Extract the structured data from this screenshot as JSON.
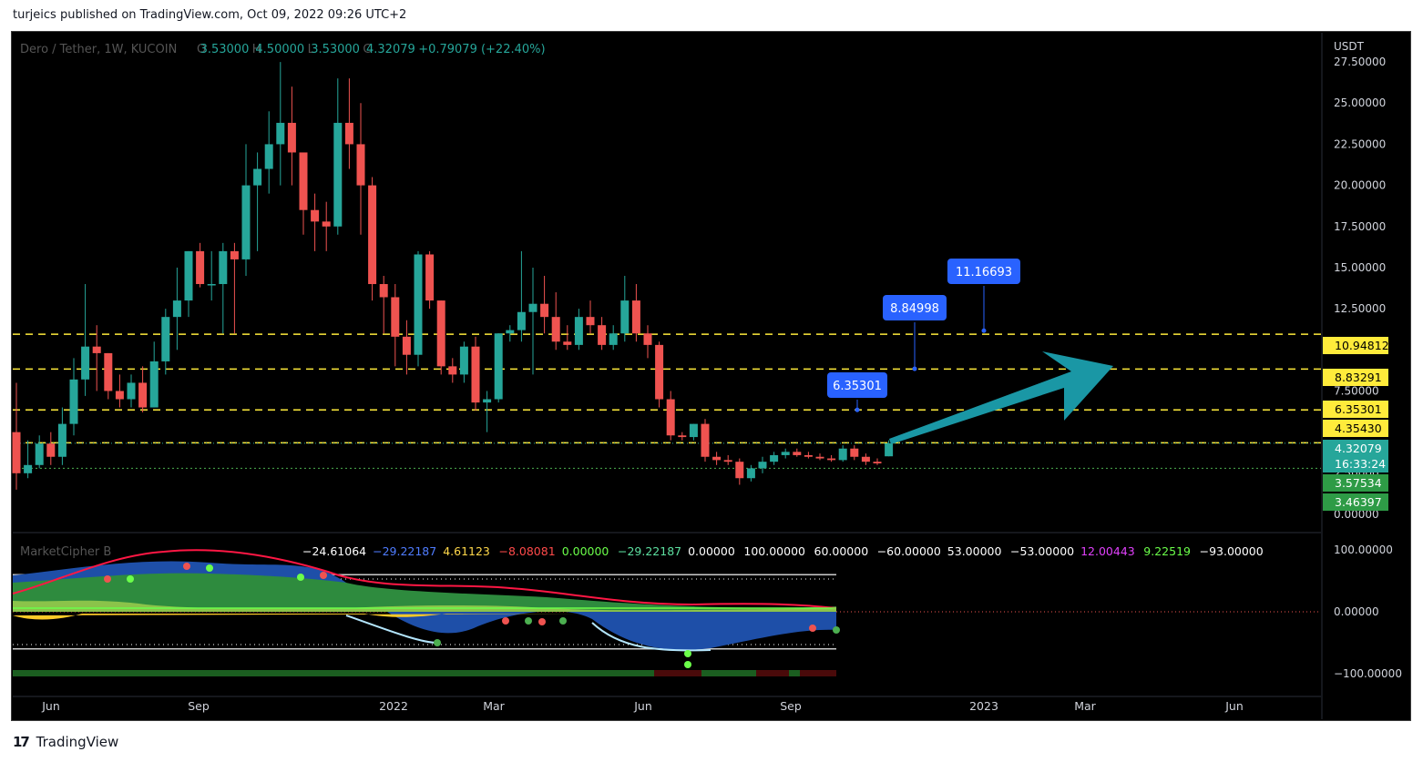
{
  "header": {
    "published": "turjeics published on TradingView.com, Oct 09, 2022 09:26 UTC+2"
  },
  "legend": {
    "symbol": "Dero / Tether, 1W, KUCOIN",
    "open_label": "O",
    "open": "3.53000",
    "high_label": "H",
    "high": "4.50000",
    "low_label": "L",
    "low": "3.53000",
    "close_label": "C",
    "close": "4.32079",
    "change": "+0.79079 (+22.40%)"
  },
  "indicator": {
    "name": "MarketCipher B",
    "values": [
      {
        "text": "−24.61064",
        "color": "#ffffff"
      },
      {
        "text": "−29.22187",
        "color": "#4f7cff"
      },
      {
        "text": "4.61123",
        "color": "#ffd84a"
      },
      {
        "text": "−8.08081",
        "color": "#ff4a4a"
      },
      {
        "text": "0.00000",
        "color": "#6bff4a"
      },
      {
        "text": "−29.22187",
        "color": "#5de0a0"
      },
      {
        "text": "0.00000",
        "color": "#ffffff"
      },
      {
        "text": "100.00000",
        "color": "#ffffff"
      },
      {
        "text": "60.00000",
        "color": "#ffffff"
      },
      {
        "text": "−60.00000",
        "color": "#ffffff"
      },
      {
        "text": "53.00000",
        "color": "#ffffff"
      },
      {
        "text": "−53.00000",
        "color": "#ffffff"
      },
      {
        "text": "12.00443",
        "color": "#e040fb"
      },
      {
        "text": "9.22519",
        "color": "#6bff4a"
      },
      {
        "text": "−93.00000",
        "color": "#ffffff"
      }
    ],
    "axis": [
      "100.00000",
      "0.00000",
      "−100.00000"
    ]
  },
  "price_axis": {
    "currency": "USDT",
    "ticks": [
      "27.50000",
      "25.00000",
      "22.50000",
      "20.00000",
      "17.50000",
      "15.00000",
      "12.50000",
      "10.00000",
      "7.50000",
      "5.00000",
      "2.50000",
      "0.00000"
    ]
  },
  "price_labels": [
    {
      "text": "10.94812",
      "bg": "#ffeb3b",
      "fg": "#000000"
    },
    {
      "text": "8.83291",
      "bg": "#ffeb3b",
      "fg": "#000000"
    },
    {
      "text": "6.35301",
      "bg": "#ffeb3b",
      "fg": "#000000"
    },
    {
      "text": "4.35430",
      "bg": "#ffeb3b",
      "fg": "#000000"
    },
    {
      "text": "4.32079",
      "bg": "#26a69a",
      "fg": "#ffffff"
    },
    {
      "text": "16:33:24",
      "bg": "#26a69a",
      "fg": "#ffffff"
    },
    {
      "text": "3.57534",
      "bg": "#2e9b46",
      "fg": "#ffffff"
    },
    {
      "text": "3.46397",
      "bg": "#2e9b46",
      "fg": "#ffffff"
    }
  ],
  "callouts": [
    {
      "text": "6.35301",
      "price": 6.353
    },
    {
      "text": "8.84998",
      "price": 8.85
    },
    {
      "text": "11.16693",
      "price": 11.167
    }
  ],
  "time_axis": [
    "Jun",
    "Sep",
    "2022",
    "Mar",
    "Jun",
    "Sep",
    "2023",
    "Mar",
    "Jun"
  ],
  "brand": {
    "logo": "17",
    "name": "TradingView"
  },
  "colors": {
    "up": "#26a69a",
    "down": "#ef5350",
    "bg": "#000000",
    "level": "#ffeb3b",
    "arrow": "#1a97a5",
    "callout": "#2962ff"
  },
  "chart_data": {
    "type": "candlestick",
    "title": "Dero / Tether, 1W, KUCOIN",
    "ylabel": "USDT",
    "ylim": [
      0,
      28.5
    ],
    "x_start": "2021-05-03",
    "interval": "1W",
    "candles": [
      {
        "o": 5.0,
        "h": 8.0,
        "l": 1.5,
        "c": 2.5
      },
      {
        "o": 2.5,
        "h": 4.5,
        "l": 2.2,
        "c": 3.0
      },
      {
        "o": 3.0,
        "h": 4.8,
        "l": 2.8,
        "c": 4.3
      },
      {
        "o": 4.3,
        "h": 5.0,
        "l": 3.0,
        "c": 3.5
      },
      {
        "o": 3.5,
        "h": 6.5,
        "l": 3.0,
        "c": 5.5
      },
      {
        "o": 5.5,
        "h": 9.5,
        "l": 4.8,
        "c": 8.2
      },
      {
        "o": 8.2,
        "h": 14.0,
        "l": 7.2,
        "c": 10.2
      },
      {
        "o": 10.2,
        "h": 11.5,
        "l": 7.5,
        "c": 9.8
      },
      {
        "o": 9.8,
        "h": 9.8,
        "l": 7.0,
        "c": 7.5
      },
      {
        "o": 7.5,
        "h": 8.5,
        "l": 6.5,
        "c": 7.0
      },
      {
        "o": 7.0,
        "h": 8.5,
        "l": 6.5,
        "c": 8.0
      },
      {
        "o": 8.0,
        "h": 9.0,
        "l": 6.2,
        "c": 6.5
      },
      {
        "o": 6.5,
        "h": 10.5,
        "l": 6.5,
        "c": 9.3
      },
      {
        "o": 9.3,
        "h": 12.5,
        "l": 8.5,
        "c": 12.0
      },
      {
        "o": 12.0,
        "h": 15.0,
        "l": 10.0,
        "c": 13.0
      },
      {
        "o": 13.0,
        "h": 16.0,
        "l": 12.0,
        "c": 16.0
      },
      {
        "o": 16.0,
        "h": 16.5,
        "l": 13.8,
        "c": 14.0
      },
      {
        "o": 14.0,
        "h": 16.0,
        "l": 13.0,
        "c": 14.0
      },
      {
        "o": 14.0,
        "h": 16.5,
        "l": 11.0,
        "c": 16.0
      },
      {
        "o": 16.0,
        "h": 16.5,
        "l": 11.0,
        "c": 15.5
      },
      {
        "o": 15.5,
        "h": 22.5,
        "l": 14.5,
        "c": 20.0
      },
      {
        "o": 20.0,
        "h": 22.0,
        "l": 16.0,
        "c": 21.0
      },
      {
        "o": 21.0,
        "h": 24.5,
        "l": 19.5,
        "c": 22.5
      },
      {
        "o": 22.5,
        "h": 27.5,
        "l": 20.0,
        "c": 23.8
      },
      {
        "o": 23.8,
        "h": 26.0,
        "l": 20.0,
        "c": 22.0
      },
      {
        "o": 22.0,
        "h": 22.0,
        "l": 17.0,
        "c": 18.5
      },
      {
        "o": 18.5,
        "h": 19.5,
        "l": 16.0,
        "c": 17.8
      },
      {
        "o": 17.8,
        "h": 19.0,
        "l": 16.0,
        "c": 17.5
      },
      {
        "o": 17.5,
        "h": 26.5,
        "l": 17.0,
        "c": 23.8
      },
      {
        "o": 23.8,
        "h": 26.5,
        "l": 21.0,
        "c": 22.5
      },
      {
        "o": 22.5,
        "h": 25.0,
        "l": 17.0,
        "c": 20.0
      },
      {
        "o": 20.0,
        "h": 20.5,
        "l": 13.0,
        "c": 14.0
      },
      {
        "o": 14.0,
        "h": 14.5,
        "l": 11.0,
        "c": 13.2
      },
      {
        "o": 13.2,
        "h": 14.0,
        "l": 9.0,
        "c": 10.8
      },
      {
        "o": 10.8,
        "h": 11.8,
        "l": 8.5,
        "c": 9.7
      },
      {
        "o": 9.7,
        "h": 16.0,
        "l": 9.0,
        "c": 15.8
      },
      {
        "o": 15.8,
        "h": 16.0,
        "l": 12.5,
        "c": 13.0
      },
      {
        "o": 13.0,
        "h": 13.0,
        "l": 8.5,
        "c": 9.0
      },
      {
        "o": 9.0,
        "h": 9.5,
        "l": 8.0,
        "c": 8.5
      },
      {
        "o": 8.5,
        "h": 10.5,
        "l": 8.0,
        "c": 10.2
      },
      {
        "o": 10.2,
        "h": 10.8,
        "l": 6.3,
        "c": 6.8
      },
      {
        "o": 6.8,
        "h": 7.5,
        "l": 5.0,
        "c": 7.0
      },
      {
        "o": 7.0,
        "h": 11.0,
        "l": 6.8,
        "c": 11.0
      },
      {
        "o": 11.0,
        "h": 11.5,
        "l": 10.5,
        "c": 11.2
      },
      {
        "o": 11.2,
        "h": 16.0,
        "l": 10.5,
        "c": 12.3
      },
      {
        "o": 12.3,
        "h": 15.0,
        "l": 8.5,
        "c": 12.8
      },
      {
        "o": 12.8,
        "h": 14.5,
        "l": 11.0,
        "c": 12.0
      },
      {
        "o": 12.0,
        "h": 13.5,
        "l": 10.0,
        "c": 10.5
      },
      {
        "o": 10.5,
        "h": 11.5,
        "l": 10.0,
        "c": 10.3
      },
      {
        "o": 10.3,
        "h": 12.5,
        "l": 10.0,
        "c": 12.0
      },
      {
        "o": 12.0,
        "h": 13.0,
        "l": 11.0,
        "c": 11.5
      },
      {
        "o": 11.5,
        "h": 12.0,
        "l": 10.0,
        "c": 10.3
      },
      {
        "o": 10.3,
        "h": 11.5,
        "l": 10.0,
        "c": 11.0
      },
      {
        "o": 11.0,
        "h": 14.5,
        "l": 10.5,
        "c": 13.0
      },
      {
        "o": 13.0,
        "h": 14.0,
        "l": 10.5,
        "c": 11.0
      },
      {
        "o": 11.0,
        "h": 11.5,
        "l": 9.5,
        "c": 10.3
      },
      {
        "o": 10.3,
        "h": 10.5,
        "l": 6.5,
        "c": 7.0
      },
      {
        "o": 7.0,
        "h": 7.5,
        "l": 4.5,
        "c": 4.8
      },
      {
        "o": 4.8,
        "h": 5.0,
        "l": 4.5,
        "c": 4.7
      },
      {
        "o": 4.7,
        "h": 5.5,
        "l": 4.5,
        "c": 5.5
      },
      {
        "o": 5.5,
        "h": 5.8,
        "l": 3.2,
        "c": 3.5
      },
      {
        "o": 3.5,
        "h": 3.8,
        "l": 3.0,
        "c": 3.3
      },
      {
        "o": 3.3,
        "h": 3.6,
        "l": 3.0,
        "c": 3.2
      },
      {
        "o": 3.2,
        "h": 3.4,
        "l": 1.8,
        "c": 2.2
      },
      {
        "o": 2.2,
        "h": 3.0,
        "l": 2.0,
        "c": 2.8
      },
      {
        "o": 2.8,
        "h": 3.5,
        "l": 2.5,
        "c": 3.2
      },
      {
        "o": 3.2,
        "h": 3.8,
        "l": 3.0,
        "c": 3.6
      },
      {
        "o": 3.6,
        "h": 4.0,
        "l": 3.4,
        "c": 3.8
      },
      {
        "o": 3.8,
        "h": 4.0,
        "l": 3.5,
        "c": 3.6
      },
      {
        "o": 3.6,
        "h": 3.8,
        "l": 3.4,
        "c": 3.5
      },
      {
        "o": 3.5,
        "h": 3.7,
        "l": 3.3,
        "c": 3.4
      },
      {
        "o": 3.4,
        "h": 3.6,
        "l": 3.2,
        "c": 3.3
      },
      {
        "o": 3.3,
        "h": 4.2,
        "l": 3.2,
        "c": 4.0
      },
      {
        "o": 4.0,
        "h": 4.2,
        "l": 3.3,
        "c": 3.5
      },
      {
        "o": 3.5,
        "h": 3.7,
        "l": 3.0,
        "c": 3.2
      },
      {
        "o": 3.2,
        "h": 3.4,
        "l": 3.0,
        "c": 3.1
      },
      {
        "o": 3.53,
        "h": 4.5,
        "l": 3.53,
        "c": 4.32079
      }
    ],
    "levels": [
      10.94812,
      8.83291,
      6.35301,
      4.3543
    ],
    "green_level": 3.57534
  }
}
